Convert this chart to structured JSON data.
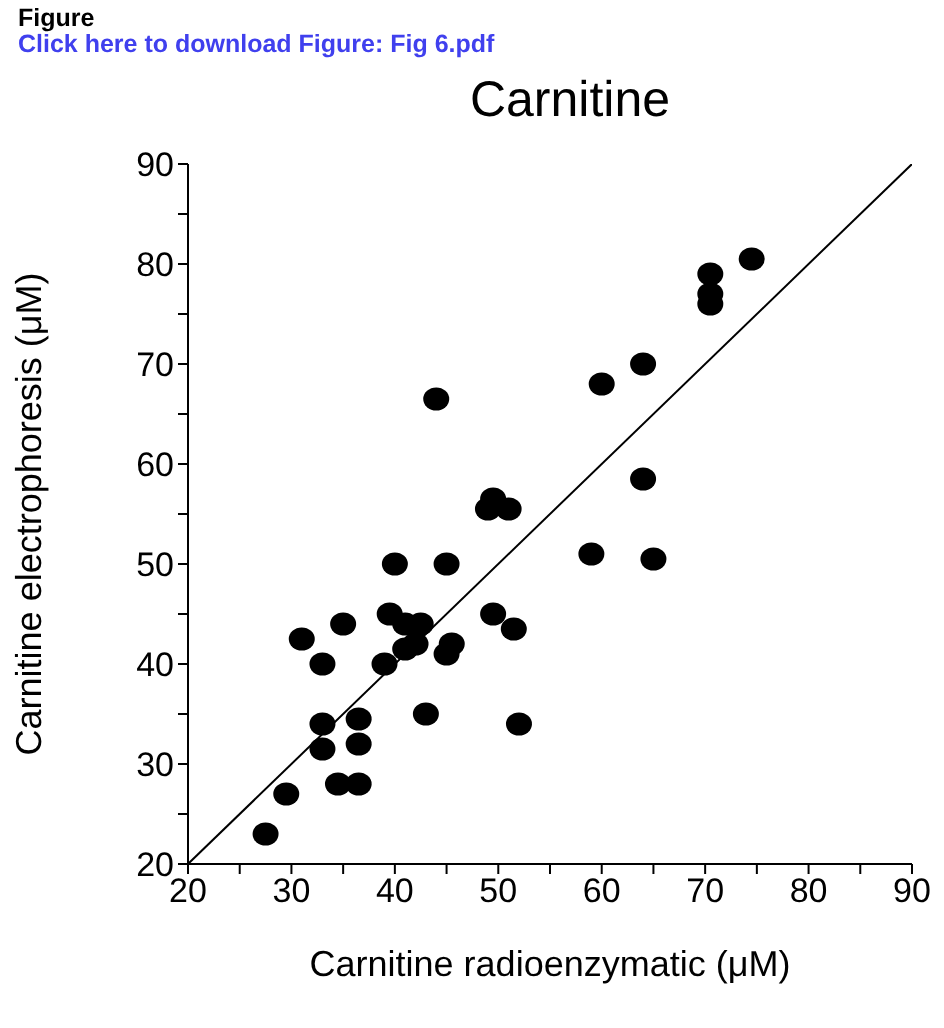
{
  "chart_data": {
    "type": "scatter",
    "title": "Carnitine",
    "xlabel": "Carnitine radioenzymatic (μM)",
    "ylabel": "Carnitine electrophoresis (μM)",
    "annotations": [
      "Figure",
      "Click here to download Figure: Fig 6.pdf"
    ],
    "xlim": [
      20,
      90
    ],
    "ylim": [
      20,
      90
    ],
    "xticks": [
      20,
      {
        "value": 25,
        "label": null
      },
      30,
      {
        "value": 35,
        "label": null
      },
      40,
      {
        "value": 45,
        "label": null
      },
      50,
      {
        "value": 55,
        "label": null
      },
      60,
      {
        "value": 65,
        "label": null
      },
      70,
      {
        "value": 75,
        "label": null
      },
      80,
      {
        "value": 85,
        "label": null
      },
      90
    ],
    "yticks": [
      20,
      {
        "value": 25,
        "label": null
      },
      30,
      {
        "value": 35,
        "label": null
      },
      40,
      {
        "value": 45,
        "label": null
      },
      50,
      {
        "value": 55,
        "label": null
      },
      60,
      {
        "value": 65,
        "label": null
      },
      70,
      {
        "value": 75,
        "label": null
      },
      80,
      {
        "value": 85,
        "label": null
      },
      90
    ],
    "series": [
      {
        "color": "#000000",
        "marker": "circle",
        "x": [
          27.5,
          29.5,
          31,
          33,
          33,
          33,
          34.5,
          35,
          36.5,
          36.5,
          36.5,
          39,
          39.5,
          40,
          41,
          41,
          42,
          42.5,
          43,
          44,
          45,
          45,
          45.5,
          49,
          49.5,
          49.5,
          51,
          51.5,
          52,
          59,
          60,
          64,
          64,
          65,
          70.5,
          70.5,
          70.5,
          74.5
        ],
        "values": [
          23,
          27,
          42.5,
          34,
          31.5,
          40,
          28,
          44,
          28,
          34.5,
          32,
          40,
          45,
          50,
          44,
          41.5,
          42,
          44,
          35,
          66.5,
          41,
          50,
          42,
          55.5,
          56.5,
          45,
          55.5,
          43.5,
          34,
          51,
          68,
          58.5,
          70,
          50.5,
          79,
          77,
          76,
          80.5
        ]
      },
      {
        "type": "line",
        "color": "#000000",
        "marker": "none",
        "x": [
          20,
          90
        ],
        "values": [
          20,
          90
        ]
      }
    ]
  }
}
